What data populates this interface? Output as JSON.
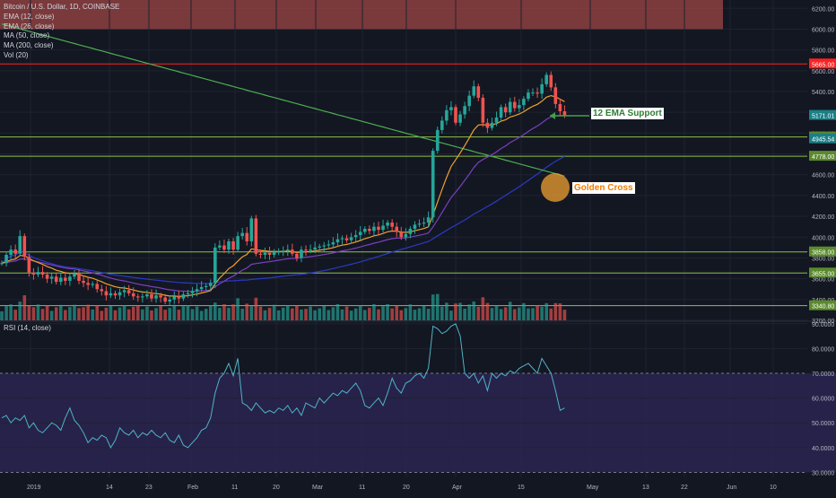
{
  "legend": {
    "symbol": "Bitcoin / U.S. Dollar, 1D, COINBASE",
    "ema12": "EMA (12, close)",
    "ema26": "EMA (26, close)",
    "ma50": "MA (50, close)",
    "ma200": "MA (200, close)",
    "vol": "Vol (20)"
  },
  "rsi_label": "RSI (14, close)",
  "annotations": {
    "ema_support": "12 EMA Support",
    "golden_cross": "Golden Cross"
  },
  "colors": {
    "background": "#131722",
    "up": "#26a69a",
    "down": "#ef5350",
    "ema12": "#f0a030",
    "ema26": "#7b3fbf",
    "ma50": "#2a3ac8",
    "ma200": "#4caf50",
    "level_red": "#ff2020",
    "level_green": "#8bc34a",
    "rsi_line": "#4fb3c9",
    "rsi_band": "#2b2450"
  },
  "chart_data": [
    {
      "type": "candlestick",
      "title": "Bitcoin / U.S. Dollar, 1D, COINBASE",
      "x_tick_labels": [
        "2019",
        "14",
        "23",
        "Feb",
        "11",
        "20",
        "Mar",
        "11",
        "20",
        "Apr",
        "15",
        "May",
        "13",
        "22",
        "Jun",
        "10"
      ],
      "y_tick_labels": [
        "6200.00",
        "6000.00",
        "5800.00",
        "5600.00",
        "5400.00",
        "5200.00",
        "5000.00",
        "4800.00",
        "4600.00",
        "4400.00",
        "4200.00",
        "4000.00",
        "3800.00",
        "3600.00",
        "3400.00",
        "3200.00"
      ],
      "ylim": [
        3200,
        6280
      ],
      "horizontal_levels": [
        {
          "value": 5665,
          "label": "5665.00",
          "color": "red"
        },
        {
          "value": 4963,
          "label": "4963.00",
          "color": "green"
        },
        {
          "value": 4778,
          "label": "4778.00",
          "color": "green"
        },
        {
          "value": 3858,
          "label": "3858.00",
          "color": "green"
        },
        {
          "value": 3655,
          "label": "3655.00",
          "color": "green"
        },
        {
          "value": 3340.8,
          "label": "3340.80",
          "color": "green"
        }
      ],
      "price_labels": [
        {
          "value": 5171,
          "label": "5171.01"
        },
        {
          "value": 4945.54,
          "label": "4945.54"
        }
      ],
      "shaded_zone": [
        6000,
        6280
      ],
      "close": [
        3750,
        3830,
        3880,
        3840,
        4010,
        3810,
        3660,
        3640,
        3665,
        3640,
        3600,
        3620,
        3570,
        3610,
        3580,
        3620,
        3650,
        3580,
        3560,
        3540,
        3550,
        3500,
        3480,
        3440,
        3460,
        3440,
        3470,
        3490,
        3460,
        3430,
        3420,
        3430,
        3450,
        3410,
        3440,
        3420,
        3380,
        3400,
        3430,
        3410,
        3450,
        3460,
        3480,
        3500,
        3520,
        3530,
        3560,
        3900,
        3920,
        3880,
        3960,
        3880,
        4010,
        4040,
        3960,
        4180,
        3840,
        3830,
        3850,
        3830,
        3860,
        3860,
        3870,
        3880,
        3840,
        3800,
        3880,
        3870,
        3880,
        3900,
        3910,
        3920,
        3930,
        3950,
        3980,
        3990,
        3970,
        4000,
        4020,
        4050,
        4080,
        4060,
        4100,
        4070,
        4110,
        4140,
        4100,
        4050,
        4000,
        4030,
        4080,
        4120,
        4130,
        4140,
        4190,
        4830,
        5030,
        5120,
        5220,
        5250,
        5100,
        5180,
        5260,
        5360,
        5450,
        5340,
        5100,
        5050,
        5100,
        5150,
        5250,
        5200,
        5300,
        5240,
        5270,
        5330,
        5390,
        5390,
        5380,
        5470,
        5560,
        5440,
        5280,
        5210,
        5170
      ]
    },
    {
      "type": "line",
      "title": "RSI (14, close)",
      "y_tick_labels": [
        "90.0000",
        "80.0000",
        "70.0000",
        "60.0000",
        "50.0000",
        "40.0000",
        "30.0000"
      ],
      "ylim": [
        28,
        91
      ],
      "bands": [
        30,
        70
      ],
      "values": [
        52,
        53,
        50,
        52,
        51,
        53,
        48,
        50,
        47,
        46,
        48,
        50,
        49,
        47,
        52,
        56,
        51,
        49,
        46,
        42,
        44,
        43,
        45,
        44,
        40,
        43,
        48,
        46,
        45,
        47,
        44,
        46,
        45,
        47,
        45,
        44,
        46,
        43,
        42,
        45,
        41,
        40,
        42,
        44,
        47,
        48,
        52,
        62,
        68,
        70,
        74,
        69,
        76,
        58,
        57,
        55,
        58,
        56,
        54,
        55,
        54,
        56,
        55,
        57,
        54,
        56,
        53,
        58,
        57,
        56,
        60,
        58,
        60,
        62,
        61,
        63,
        62,
        64,
        66,
        63,
        57,
        56,
        58,
        60,
        57,
        62,
        68,
        64,
        62,
        66,
        67,
        69,
        70,
        68,
        72,
        89,
        88,
        86,
        87,
        89,
        90,
        85,
        70,
        68,
        70,
        66,
        69,
        63,
        70,
        68,
        70,
        69,
        71,
        70,
        72,
        73,
        74,
        72,
        70,
        76,
        73,
        70,
        63,
        55,
        56
      ]
    }
  ]
}
